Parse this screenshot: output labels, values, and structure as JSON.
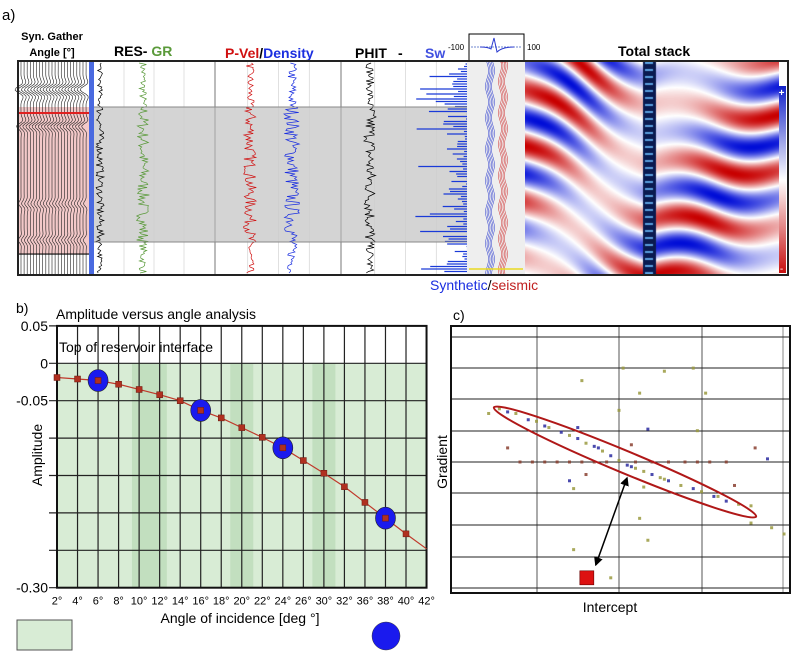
{
  "panel_a": {
    "label": "a)",
    "gather_title_1": "Syn. Gather",
    "gather_title_2": "Angle [°]",
    "res_label": "RES-",
    "gr_label": " GR",
    "pvel_label": "P-Vel",
    "slash": "/",
    "density_label": "Density",
    "phit_label": "PHIT",
    "dash": "-",
    "sw_label": "Sw",
    "wavelet_min": "-100",
    "wavelet_max": "100",
    "stack_title": "Total stack",
    "synthetic_label": "Synthetic",
    "seismic_label": "seismic",
    "colorbar_plus": "+",
    "colorbar_minus": "-",
    "colors": {
      "res": "#000000",
      "gr": "#5a9a3a",
      "pvel": "#d01010",
      "density": "#1a2ee0",
      "phit": "#000000",
      "sw": "#1a3ad8",
      "positive": "#1020c8",
      "negative": "#c81010"
    }
  },
  "chart_data": [
    {
      "panel": "b)",
      "type": "line",
      "title": "Amplitude versus angle analysis",
      "annotation": "Top of reservoir interface",
      "xlabel": "Angle of incidence [deg °]",
      "ylabel": "Amplitude",
      "categories": [
        "2°",
        "4°",
        "6°",
        "8°",
        "10°",
        "12°",
        "14°",
        "16°",
        "18°",
        "20°",
        "22°",
        "24°",
        "26°",
        "30°",
        "32°",
        "36°",
        "38°",
        "40°",
        "42°"
      ],
      "values": [
        -0.019,
        -0.021,
        -0.023,
        -0.028,
        -0.035,
        -0.042,
        -0.05,
        -0.063,
        -0.073,
        -0.086,
        -0.099,
        -0.113,
        -0.13,
        -0.147,
        -0.165,
        -0.186,
        -0.207,
        -0.228,
        -0.248
      ],
      "highlighted": [
        "6°",
        "16°",
        "24°",
        "38°"
      ],
      "shaded_ranges": [
        [
          "10°",
          "12°"
        ],
        [
          "20°",
          "20°"
        ],
        [
          "30°",
          "30°"
        ]
      ],
      "ylim": [
        -0.3,
        0.05
      ],
      "ytick_labels": [
        "0.05",
        "0",
        "-0.05",
        "-0.30"
      ],
      "yticks": [
        0.05,
        0,
        -0.05,
        -0.1,
        -0.15,
        -0.2,
        -0.25,
        -0.3
      ],
      "grid": true,
      "colors": {
        "line": "#c0392b",
        "marker": "#b03020",
        "circle": "#1a1aee",
        "fill": "#d8ecd5",
        "band": "#c2dfbf"
      }
    },
    {
      "panel": "c)",
      "type": "scatter",
      "xlabel": "Intercept",
      "ylabel": "Gradient",
      "grid": true,
      "colors": {
        "b": "#2a2aa0",
        "y": "#9a9a40",
        "r": "#8a4030",
        "ellipse": "#b01818",
        "reservoir": "#dd1111"
      },
      "points": [
        [
          -1.58,
          1.55,
          "y"
        ],
        [
          -1.45,
          1.7,
          "y"
        ],
        [
          -1.35,
          1.6,
          "b"
        ],
        [
          -1.25,
          1.55,
          "y"
        ],
        [
          -1.1,
          1.35,
          "b"
        ],
        [
          -1.0,
          1.3,
          "y"
        ],
        [
          -0.85,
          1.1,
          "y"
        ],
        [
          -0.7,
          0.95,
          "b"
        ],
        [
          -0.6,
          0.85,
          "y"
        ],
        [
          -0.5,
          0.75,
          "b"
        ],
        [
          -0.4,
          0.6,
          "y"
        ],
        [
          -0.3,
          0.5,
          "b"
        ],
        [
          -0.2,
          0.35,
          "y"
        ],
        [
          -0.1,
          0.2,
          "b"
        ],
        [
          0,
          0.05,
          "y"
        ],
        [
          0.1,
          -0.1,
          "b"
        ],
        [
          0.2,
          -0.2,
          "y"
        ],
        [
          0.3,
          -0.3,
          "y"
        ],
        [
          0.4,
          -0.4,
          "b"
        ],
        [
          0.5,
          -0.5,
          "y"
        ],
        [
          0.6,
          -0.6,
          "b"
        ],
        [
          0.75,
          -0.75,
          "y"
        ],
        [
          0.9,
          -0.85,
          "b"
        ],
        [
          1.0,
          -0.95,
          "y"
        ],
        [
          1.15,
          -1.1,
          "b"
        ],
        [
          1.3,
          -1.25,
          "b"
        ],
        [
          1.45,
          -1.35,
          "y"
        ],
        [
          1.6,
          -1.4,
          "y"
        ],
        [
          -0.9,
          1.15,
          "b"
        ],
        [
          -0.25,
          0.45,
          "b"
        ],
        [
          0.15,
          -0.15,
          "b"
        ],
        [
          0.55,
          -0.55,
          "y"
        ],
        [
          1.2,
          -1.1,
          "y"
        ],
        [
          -1.2,
          0,
          "r"
        ],
        [
          -1.05,
          0,
          "r"
        ],
        [
          -0.9,
          0,
          "r"
        ],
        [
          -0.75,
          0,
          "r"
        ],
        [
          -0.6,
          0,
          "r"
        ],
        [
          -0.45,
          0,
          "r"
        ],
        [
          -0.3,
          0,
          "r"
        ],
        [
          -0.15,
          0,
          "r"
        ],
        [
          0.2,
          0,
          "r"
        ],
        [
          0.4,
          0,
          "r"
        ],
        [
          0.6,
          0,
          "r"
        ],
        [
          0.8,
          0,
          "r"
        ],
        [
          0.95,
          0,
          "r"
        ],
        [
          1.1,
          0,
          "r"
        ],
        [
          1.3,
          0,
          "r"
        ],
        [
          -0.45,
          2.6,
          "y"
        ],
        [
          0.05,
          3.0,
          "y"
        ],
        [
          0.25,
          2.2,
          "y"
        ],
        [
          0.0,
          1.65,
          "y"
        ],
        [
          -0.5,
          1.1,
          "b"
        ],
        [
          1.65,
          0.45,
          "r"
        ],
        [
          1.8,
          0.1,
          "b"
        ],
        [
          -1.35,
          0.45,
          "r"
        ],
        [
          -0.6,
          -0.6,
          "b"
        ],
        [
          -0.55,
          -0.85,
          "y"
        ],
        [
          0.3,
          -0.8,
          "y"
        ],
        [
          1.4,
          -0.75,
          "r"
        ],
        [
          0.25,
          -1.8,
          "y"
        ],
        [
          0.35,
          -2.5,
          "y"
        ],
        [
          -0.55,
          -2.8,
          "y"
        ],
        [
          -0.1,
          -3.7,
          "y"
        ],
        [
          1.6,
          -1.95,
          "y"
        ],
        [
          1.85,
          -2.1,
          "y"
        ],
        [
          2.0,
          -2.3,
          "y"
        ],
        [
          0.9,
          3.0,
          "y"
        ],
        [
          1.05,
          2.2,
          "y"
        ],
        [
          0.55,
          2.9,
          "y"
        ],
        [
          0.35,
          1.05,
          "b"
        ],
        [
          0.95,
          1.0,
          "y"
        ],
        [
          -0.4,
          -0.4,
          "r"
        ],
        [
          0.15,
          0.55,
          "r"
        ]
      ],
      "reservoir_point": [
        -0.39,
        -3.7
      ]
    }
  ]
}
